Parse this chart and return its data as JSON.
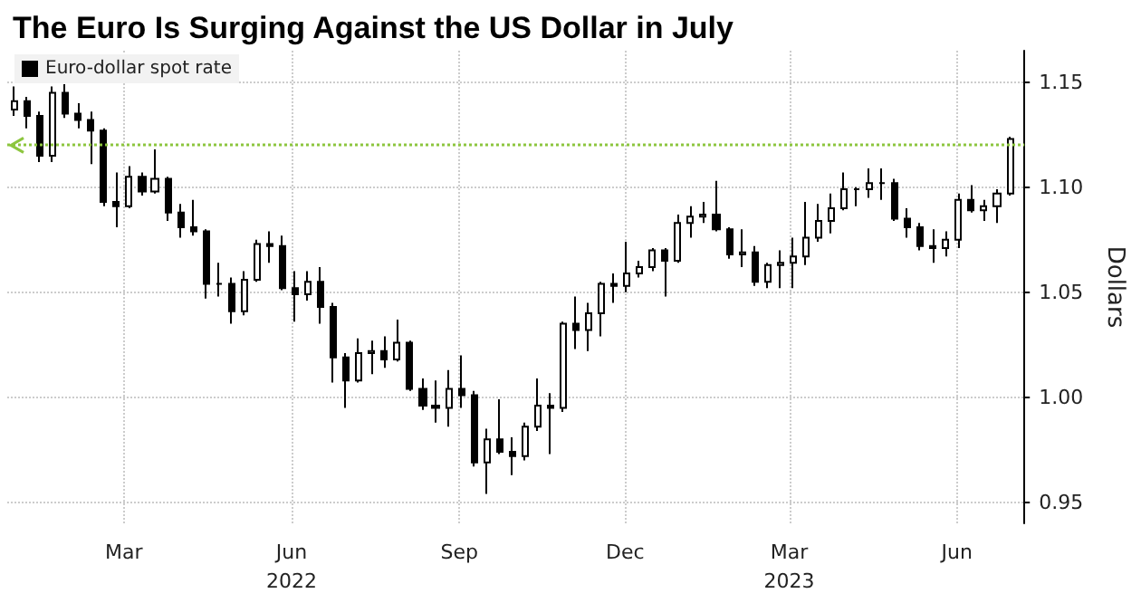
{
  "chart_data": {
    "type": "candlestick",
    "title": "The Euro Is Surging Against the US Dollar in July",
    "ylabel": "Dollars",
    "x": [
      "2022-01-14",
      "2022-01-21",
      "2022-01-28",
      "2022-02-04",
      "2022-02-11",
      "2022-02-18",
      "2022-02-25",
      "2022-03-04",
      "2022-03-11",
      "2022-03-18",
      "2022-03-25",
      "2022-04-01",
      "2022-04-08",
      "2022-04-15",
      "2022-04-22",
      "2022-04-29",
      "2022-05-06",
      "2022-05-13",
      "2022-05-20",
      "2022-05-27",
      "2022-06-03",
      "2022-06-10",
      "2022-06-17",
      "2022-06-24",
      "2022-07-01",
      "2022-07-08",
      "2022-07-15",
      "2022-07-22",
      "2022-07-29",
      "2022-08-05",
      "2022-08-12",
      "2022-08-19",
      "2022-08-26",
      "2022-09-02",
      "2022-09-09",
      "2022-09-16",
      "2022-09-23",
      "2022-09-30",
      "2022-10-07",
      "2022-10-14",
      "2022-10-21",
      "2022-10-28",
      "2022-11-04",
      "2022-11-11",
      "2022-11-18",
      "2022-11-25",
      "2022-12-02",
      "2022-12-09",
      "2022-12-16",
      "2022-12-23",
      "2022-12-30",
      "2023-01-06",
      "2023-01-13",
      "2023-01-20",
      "2023-01-27",
      "2023-02-03",
      "2023-02-10",
      "2023-02-17",
      "2023-02-24",
      "2023-03-03",
      "2023-03-10",
      "2023-03-17",
      "2023-03-24",
      "2023-03-31",
      "2023-04-07",
      "2023-04-14",
      "2023-04-21",
      "2023-04-28",
      "2023-05-05",
      "2023-05-12",
      "2023-05-19",
      "2023-05-26",
      "2023-06-02",
      "2023-06-09",
      "2023-06-16",
      "2023-06-23",
      "2023-06-30",
      "2023-07-07",
      "2023-07-14"
    ],
    "series": [
      {
        "name": "Euro-dollar spot rate",
        "color": "#000000",
        "ohlc": [
          [
            1.137,
            1.148,
            1.134,
            1.141
          ],
          [
            1.141,
            1.143,
            1.128,
            1.134
          ],
          [
            1.134,
            1.136,
            1.112,
            1.115
          ],
          [
            1.115,
            1.148,
            1.112,
            1.145
          ],
          [
            1.145,
            1.149,
            1.133,
            1.135
          ],
          [
            1.135,
            1.14,
            1.128,
            1.132
          ],
          [
            1.132,
            1.136,
            1.111,
            1.127
          ],
          [
            1.127,
            1.128,
            1.091,
            1.093
          ],
          [
            1.093,
            1.107,
            1.081,
            1.091
          ],
          [
            1.091,
            1.11,
            1.09,
            1.105
          ],
          [
            1.105,
            1.107,
            1.096,
            1.098
          ],
          [
            1.098,
            1.118,
            1.097,
            1.104
          ],
          [
            1.104,
            1.105,
            1.084,
            1.088
          ],
          [
            1.088,
            1.092,
            1.076,
            1.081
          ],
          [
            1.081,
            1.094,
            1.077,
            1.079
          ],
          [
            1.079,
            1.08,
            1.047,
            1.054
          ],
          [
            1.054,
            1.064,
            1.048,
            1.054
          ],
          [
            1.054,
            1.057,
            1.035,
            1.041
          ],
          [
            1.041,
            1.06,
            1.039,
            1.056
          ],
          [
            1.056,
            1.075,
            1.055,
            1.073
          ],
          [
            1.073,
            1.079,
            1.064,
            1.072
          ],
          [
            1.072,
            1.077,
            1.051,
            1.052
          ],
          [
            1.052,
            1.06,
            1.036,
            1.049
          ],
          [
            1.049,
            1.06,
            1.046,
            1.055
          ],
          [
            1.055,
            1.062,
            1.035,
            1.043
          ],
          [
            1.043,
            1.045,
            1.007,
            1.019
          ],
          [
            1.019,
            1.021,
            0.995,
            1.008
          ],
          [
            1.008,
            1.028,
            1.007,
            1.021
          ],
          [
            1.021,
            1.027,
            1.011,
            1.022
          ],
          [
            1.022,
            1.029,
            1.014,
            1.018
          ],
          [
            1.018,
            1.037,
            1.017,
            1.026
          ],
          [
            1.026,
            1.027,
            1.003,
            1.004
          ],
          [
            1.004,
            1.009,
            0.994,
            0.996
          ],
          [
            0.996,
            1.008,
            0.988,
            0.995
          ],
          [
            0.995,
            1.013,
            0.986,
            1.004
          ],
          [
            1.004,
            1.02,
            0.995,
            1.001
          ],
          [
            1.001,
            1.003,
            0.967,
            0.969
          ],
          [
            0.969,
            0.985,
            0.954,
            0.98
          ],
          [
            0.98,
            0.999,
            0.973,
            0.974
          ],
          [
            0.974,
            0.981,
            0.963,
            0.972
          ],
          [
            0.972,
            0.988,
            0.97,
            0.986
          ],
          [
            0.986,
            1.009,
            0.984,
            0.996
          ],
          [
            0.996,
            1.002,
            0.973,
            0.995
          ],
          [
            0.995,
            1.036,
            0.993,
            1.035
          ],
          [
            1.035,
            1.048,
            1.023,
            1.032
          ],
          [
            1.032,
            1.045,
            1.022,
            1.04
          ],
          [
            1.04,
            1.055,
            1.029,
            1.054
          ],
          [
            1.054,
            1.059,
            1.045,
            1.053
          ],
          [
            1.053,
            1.074,
            1.05,
            1.059
          ],
          [
            1.059,
            1.065,
            1.057,
            1.062
          ],
          [
            1.062,
            1.071,
            1.06,
            1.07
          ],
          [
            1.07,
            1.071,
            1.048,
            1.065
          ],
          [
            1.065,
            1.087,
            1.064,
            1.083
          ],
          [
            1.083,
            1.091,
            1.076,
            1.086
          ],
          [
            1.086,
            1.093,
            1.083,
            1.087
          ],
          [
            1.087,
            1.103,
            1.079,
            1.08
          ],
          [
            1.08,
            1.081,
            1.066,
            1.068
          ],
          [
            1.068,
            1.08,
            1.062,
            1.069
          ],
          [
            1.069,
            1.072,
            1.053,
            1.055
          ],
          [
            1.055,
            1.064,
            1.052,
            1.063
          ],
          [
            1.063,
            1.07,
            1.052,
            1.064
          ],
          [
            1.064,
            1.076,
            1.052,
            1.067
          ],
          [
            1.067,
            1.093,
            1.063,
            1.076
          ],
          [
            1.076,
            1.092,
            1.074,
            1.084
          ],
          [
            1.084,
            1.097,
            1.078,
            1.09
          ],
          [
            1.09,
            1.107,
            1.089,
            1.099
          ],
          [
            1.099,
            1.1,
            1.091,
            1.099
          ],
          [
            1.099,
            1.109,
            1.095,
            1.102
          ],
          [
            1.102,
            1.109,
            1.094,
            1.102
          ],
          [
            1.102,
            1.104,
            1.084,
            1.085
          ],
          [
            1.085,
            1.09,
            1.076,
            1.081
          ],
          [
            1.081,
            1.083,
            1.07,
            1.072
          ],
          [
            1.072,
            1.08,
            1.064,
            1.071
          ],
          [
            1.071,
            1.079,
            1.067,
            1.075
          ],
          [
            1.075,
            1.097,
            1.071,
            1.094
          ],
          [
            1.094,
            1.101,
            1.088,
            1.089
          ],
          [
            1.089,
            1.094,
            1.084,
            1.091
          ],
          [
            1.091,
            1.099,
            1.083,
            1.097
          ],
          [
            1.097,
            1.124,
            1.096,
            1.123
          ]
        ]
      }
    ],
    "xlim": [
      "2022-01-10",
      "2023-07-22"
    ],
    "xticks": [
      {
        "value": "2022-03-15",
        "label": "Mar"
      },
      {
        "value": "2022-06-15",
        "label": "Jun\n2022"
      },
      {
        "value": "2022-09-15",
        "label": "Sep"
      },
      {
        "value": "2022-12-15",
        "label": "Dec"
      },
      {
        "value": "2023-03-15",
        "label": "Mar\n2023"
      },
      {
        "value": "2023-06-15",
        "label": "Jun"
      }
    ],
    "ylim": [
      0.94,
      1.165
    ],
    "yticks": [
      0.95,
      {
        "value": 1.0,
        "label": "1.00"
      },
      1.05,
      {
        "value": 1.1,
        "label": "1.10"
      },
      1.15
    ],
    "ref_lines": [
      {
        "axis": "y",
        "value": 1.12,
        "color": "#8dc63f",
        "line_style": "dotted"
      }
    ],
    "grid": true,
    "legend": "top left"
  }
}
